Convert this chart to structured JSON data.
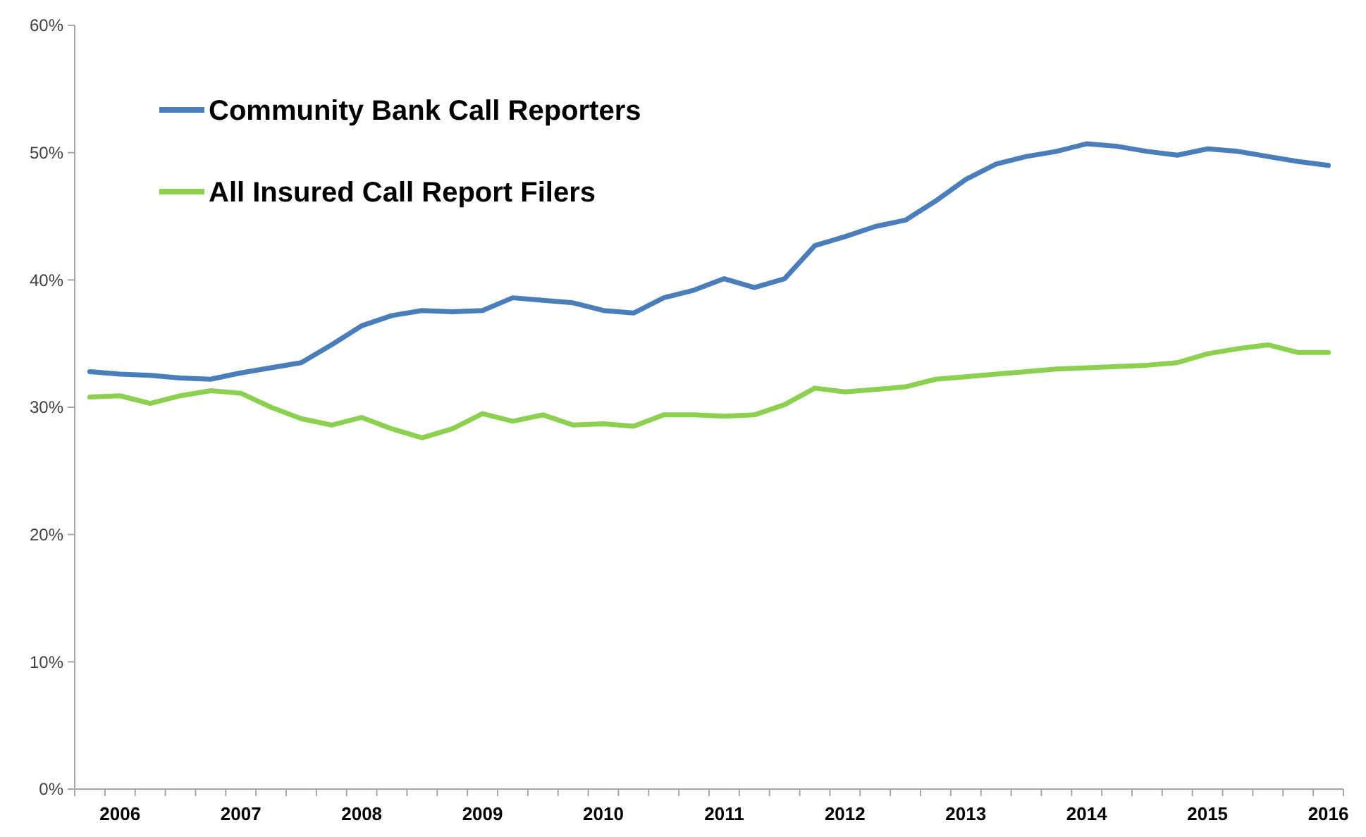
{
  "chart_data": {
    "type": "line",
    "categories": [
      null,
      "2006",
      null,
      null,
      null,
      "2007",
      null,
      null,
      null,
      "2008",
      null,
      null,
      null,
      "2009",
      null,
      null,
      null,
      "2010",
      null,
      null,
      null,
      "2011",
      null,
      null,
      null,
      "2012",
      null,
      null,
      null,
      "2013",
      null,
      null,
      null,
      "2014",
      null,
      null,
      null,
      "2015",
      null,
      null,
      null,
      "2016"
    ],
    "series": [
      {
        "name": "Community Bank Call Reporters",
        "color": "#4a7ebb",
        "values": [
          32.8,
          32.6,
          32.5,
          32.3,
          32.2,
          32.7,
          33.1,
          33.5,
          34.9,
          36.4,
          37.2,
          37.6,
          37.5,
          37.6,
          38.6,
          38.4,
          38.2,
          37.6,
          37.4,
          38.6,
          39.2,
          40.1,
          39.4,
          40.1,
          42.7,
          43.4,
          44.2,
          44.7,
          46.2,
          47.9,
          49.1,
          49.7,
          50.1,
          50.7,
          50.5,
          50.1,
          49.8,
          50.3,
          50.1,
          49.7,
          49.3,
          49.0
        ]
      },
      {
        "name": "All Insured Call Report Filers",
        "color": "#8cd04f",
        "values": [
          30.8,
          30.9,
          30.3,
          30.9,
          31.3,
          31.1,
          30.0,
          29.1,
          28.6,
          29.2,
          28.3,
          27.6,
          28.3,
          29.5,
          28.9,
          29.4,
          28.6,
          28.7,
          28.5,
          29.4,
          29.4,
          29.3,
          29.4,
          30.2,
          31.5,
          31.2,
          31.4,
          31.6,
          32.2,
          32.4,
          32.6,
          32.8,
          33.0,
          33.1,
          33.2,
          33.3,
          33.5,
          34.2,
          34.6,
          34.9,
          34.3,
          34.3
        ]
      }
    ],
    "ylim": [
      0,
      60
    ],
    "yticks": [
      {
        "value": 0,
        "label": "0%"
      },
      {
        "value": 10,
        "label": "10%"
      },
      {
        "value": 20,
        "label": "20%"
      },
      {
        "value": 30,
        "label": "30%"
      },
      {
        "value": 40,
        "label": "40%"
      },
      {
        "value": 50,
        "label": "50%"
      },
      {
        "value": 60,
        "label": "60%"
      }
    ],
    "grid": false,
    "legend": "top left",
    "marker": "none",
    "line_style": "solid"
  }
}
